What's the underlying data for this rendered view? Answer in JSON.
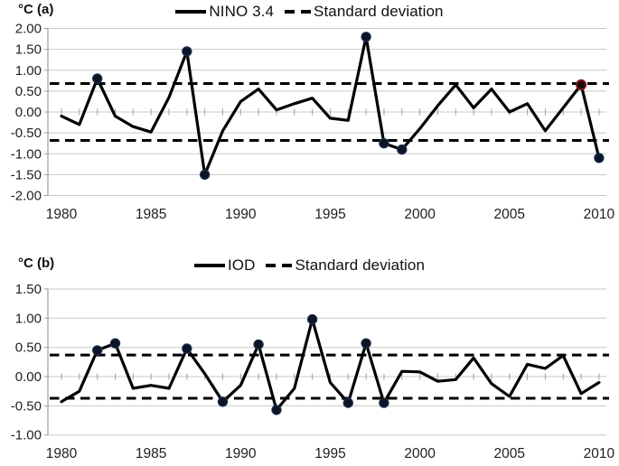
{
  "figure": {
    "background": "#ffffff",
    "line_color": "#000000",
    "grid_color": "#c8c8c8",
    "axis_color": "#9e9e9e",
    "marker_color": "#0d1424",
    "marker_ring_color": "#223a5e",
    "highlight_ring_color": "#8b1a1a",
    "text_color": "#1f1f1f"
  },
  "chart_data": [
    {
      "type": "line",
      "panel": "(a)",
      "ylabel": "°C",
      "corner_label": "°C (a)",
      "legend": [
        "NINO 3.4",
        "Standard deviation"
      ],
      "legend_position": "top",
      "grid": true,
      "std_deviation": 0.68,
      "ylim": [
        -2.0,
        2.0
      ],
      "ytick_step": 0.5,
      "ytick_labels": [
        "2.00",
        "1.50",
        "1.00",
        "0.50",
        "0.00",
        "-0.50",
        "-1.00",
        "-1.50",
        "-2.00"
      ],
      "xtick_labels": [
        "1980",
        "1985",
        "1990",
        "1995",
        "2000",
        "2005",
        "2010"
      ],
      "x": [
        1980,
        1981,
        1982,
        1983,
        1984,
        1985,
        1986,
        1987,
        1988,
        1989,
        1990,
        1991,
        1992,
        1993,
        1994,
        1995,
        1996,
        1997,
        1998,
        1999,
        2000,
        2001,
        2002,
        2003,
        2004,
        2005,
        2006,
        2007,
        2008,
        2009,
        2010
      ],
      "series": [
        {
          "name": "NINO 3.4",
          "values": [
            -0.1,
            -0.3,
            0.8,
            -0.1,
            -0.35,
            -0.48,
            0.35,
            1.45,
            -1.5,
            -0.45,
            0.25,
            0.55,
            0.05,
            0.2,
            0.33,
            -0.15,
            -0.2,
            1.8,
            -0.75,
            -0.9,
            -0.4,
            0.15,
            0.65,
            0.1,
            0.55,
            0.0,
            0.2,
            -0.45,
            0.1,
            0.65,
            -1.1
          ]
        }
      ],
      "marker_years": [
        1982,
        1987,
        1988,
        1997,
        1998,
        1999,
        2010
      ],
      "highlight_marker": {
        "year": 2009,
        "value": 0.65,
        "ring_color": "#8b1a1a"
      }
    },
    {
      "type": "line",
      "panel": "(b)",
      "ylabel": "°C",
      "corner_label": "°C (b)",
      "legend": [
        "IOD",
        "Standard deviation"
      ],
      "legend_position": "top",
      "grid": true,
      "std_deviation": 0.37,
      "ylim": [
        -1.0,
        1.5
      ],
      "ytick_step": 0.5,
      "ytick_labels": [
        "1.50",
        "1.00",
        "0.50",
        "0.00",
        "-0.50",
        "-1.00"
      ],
      "xtick_labels": [
        "1980",
        "1985",
        "1990",
        "1995",
        "2000",
        "2005",
        "2010"
      ],
      "x": [
        1980,
        1981,
        1982,
        1983,
        1984,
        1985,
        1986,
        1987,
        1988,
        1989,
        1990,
        1991,
        1992,
        1993,
        1994,
        1995,
        1996,
        1997,
        1998,
        1999,
        2000,
        2001,
        2002,
        2003,
        2004,
        2005,
        2006,
        2007,
        2008,
        2009,
        2010
      ],
      "series": [
        {
          "name": "IOD",
          "values": [
            -0.43,
            -0.25,
            0.45,
            0.57,
            -0.2,
            -0.15,
            -0.2,
            0.48,
            0.05,
            -0.43,
            -0.15,
            0.55,
            -0.57,
            -0.2,
            0.98,
            -0.1,
            -0.45,
            0.57,
            -0.45,
            0.09,
            0.08,
            -0.08,
            -0.05,
            0.32,
            -0.12,
            -0.34,
            0.21,
            0.14,
            0.36,
            -0.29,
            -0.1
          ]
        }
      ],
      "marker_years": [
        1982,
        1983,
        1987,
        1989,
        1991,
        1992,
        1994,
        1996,
        1997,
        1998
      ],
      "highlight_marker": null
    }
  ]
}
